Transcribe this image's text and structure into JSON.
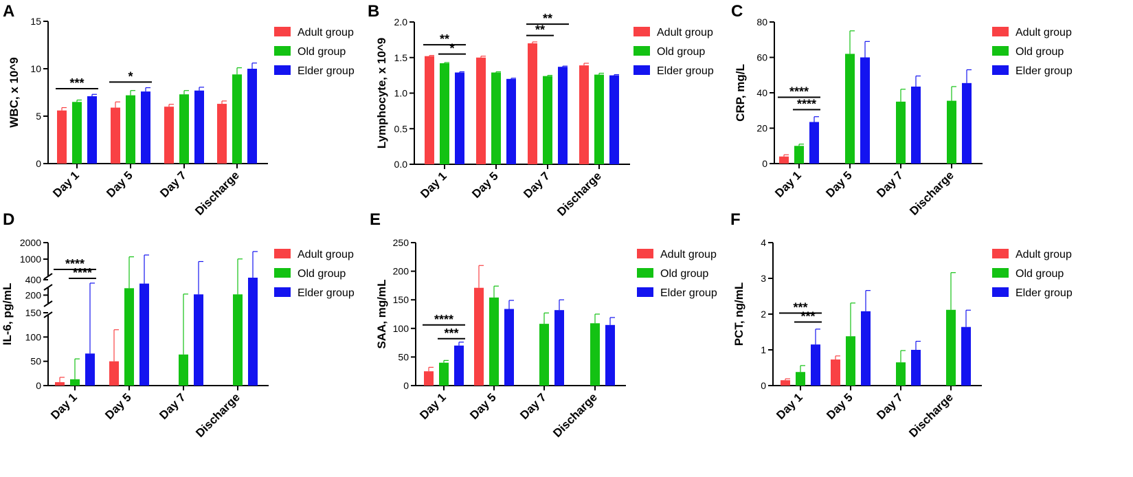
{
  "colors": {
    "adult": "#f94144",
    "old": "#13c213",
    "elder": "#1414f0"
  },
  "legend": [
    "Adult group",
    "Old group",
    "Elder group"
  ],
  "chart_data": [
    {
      "id": "A",
      "panel_label": "A",
      "type": "bar",
      "ylabel": "WBC, x 10^9",
      "categories": [
        "Day 1",
        "Day 5",
        "Day 7",
        "Discharge"
      ],
      "ylim": [
        0,
        15
      ],
      "yticks": [
        0,
        5,
        10,
        15
      ],
      "ytick_labels": [
        "0",
        "5",
        "10",
        "15"
      ],
      "series": [
        {
          "name": "Adult group",
          "values": [
            5.6,
            5.9,
            6.0,
            6.3
          ],
          "errors": [
            0.3,
            0.6,
            0.25,
            0.3
          ]
        },
        {
          "name": "Old group",
          "values": [
            6.5,
            7.2,
            7.3,
            9.4
          ],
          "errors": [
            0.2,
            0.5,
            0.4,
            0.7
          ]
        },
        {
          "name": "Elder group",
          "values": [
            7.1,
            7.6,
            7.7,
            10.0
          ],
          "errors": [
            0.2,
            0.4,
            0.35,
            0.6
          ]
        }
      ],
      "significance": [
        {
          "category": 0,
          "from": 0,
          "to": 2,
          "y": 7.9,
          "label": "***"
        },
        {
          "category": 1,
          "from": 0,
          "to": 2,
          "y": 8.6,
          "label": "*"
        }
      ]
    },
    {
      "id": "B",
      "panel_label": "B",
      "type": "bar",
      "ylabel": "Lymphocyte, x 10^9",
      "categories": [
        "Day 1",
        "Day 5",
        "Day 7",
        "Discharge"
      ],
      "ylim": [
        0,
        2.0
      ],
      "yticks": [
        0,
        0.5,
        1.0,
        1.5,
        2.0
      ],
      "ytick_labels": [
        "0.0",
        "0.5",
        "1.0",
        "1.5",
        "2.0"
      ],
      "series": [
        {
          "name": "Adult group",
          "values": [
            1.52,
            1.5,
            1.7,
            1.39
          ],
          "errors": [
            0.01,
            0.02,
            0.02,
            0.03
          ]
        },
        {
          "name": "Old group",
          "values": [
            1.42,
            1.29,
            1.24,
            1.26
          ],
          "errors": [
            0.01,
            0.01,
            0.01,
            0.02
          ]
        },
        {
          "name": "Elder group",
          "values": [
            1.29,
            1.2,
            1.37,
            1.25
          ],
          "errors": [
            0.01,
            0.01,
            0.01,
            0.01
          ]
        }
      ],
      "significance": [
        {
          "category": 0,
          "from": 0,
          "to": 2,
          "y": 1.68,
          "label": "**"
        },
        {
          "category": 0,
          "from": 1,
          "to": 2,
          "y": 1.55,
          "label": "*"
        },
        {
          "category": 2,
          "from": 0,
          "to": 2,
          "y": 1.97,
          "label": "**"
        },
        {
          "category": 2,
          "from": 0,
          "to": 1,
          "y": 1.81,
          "label": "**"
        }
      ]
    },
    {
      "id": "C",
      "panel_label": "C",
      "type": "bar",
      "ylabel": "CRP, mg/L",
      "categories": [
        "Day 1",
        "Day 5",
        "Day 7",
        "Discharge"
      ],
      "ylim": [
        0,
        80
      ],
      "yticks": [
        0,
        20,
        40,
        60,
        80
      ],
      "ytick_labels": [
        "0",
        "20",
        "40",
        "60",
        "80"
      ],
      "series": [
        {
          "name": "Adult group",
          "values": [
            4,
            null,
            null,
            null
          ],
          "errors": [
            1,
            0,
            0,
            0
          ]
        },
        {
          "name": "Old group",
          "values": [
            10,
            62,
            35,
            35.5
          ],
          "errors": [
            1,
            13,
            7,
            8
          ]
        },
        {
          "name": "Elder group",
          "values": [
            23.5,
            60,
            43.5,
            45.5
          ],
          "errors": [
            3,
            9,
            6,
            7.5
          ]
        }
      ],
      "significance": [
        {
          "category": 0,
          "from": 0,
          "to": 2,
          "y": 37.5,
          "label": "****"
        },
        {
          "category": 0,
          "from": 1,
          "to": 2,
          "y": 30.5,
          "label": "****"
        }
      ]
    },
    {
      "id": "D",
      "panel_label": "D",
      "type": "bar",
      "ylabel": "IL-6, pg/mL",
      "categories": [
        "Day 1",
        "Day 5",
        "Day 7",
        "Discharge"
      ],
      "broken_axis": true,
      "ylim": [
        0,
        2000
      ],
      "yticks": [
        0,
        50,
        100,
        150,
        200,
        400,
        1000,
        2000
      ],
      "ytick_labels": [
        "0",
        "50",
        "100",
        "150",
        "200",
        "400",
        "1000",
        "2000"
      ],
      "series": [
        {
          "name": "Adult group",
          "values": [
            7,
            50,
            null,
            null
          ],
          "errors": [
            10,
            65,
            0,
            0
          ]
        },
        {
          "name": "Old group",
          "values": [
            13,
            290,
            64,
            210
          ],
          "errors": [
            42,
            850,
            150,
            800
          ]
        },
        {
          "name": "Elder group",
          "values": [
            66,
            350,
            210,
            460
          ],
          "errors": [
            290,
            900,
            720,
            1000
          ]
        }
      ],
      "significance": [
        {
          "category": 0,
          "from": 0,
          "to": 2,
          "y": 700,
          "label": "****"
        },
        {
          "category": 0,
          "from": 1,
          "to": 2,
          "y": 440,
          "label": "****"
        }
      ]
    },
    {
      "id": "E",
      "panel_label": "E",
      "type": "bar",
      "ylabel": "SAA, mg/mL",
      "categories": [
        "Day 1",
        "Day 5",
        "Day 7",
        "Discharge"
      ],
      "ylim": [
        0,
        250
      ],
      "yticks": [
        0,
        50,
        100,
        150,
        200,
        250
      ],
      "ytick_labels": [
        "0",
        "50",
        "100",
        "150",
        "200",
        "250"
      ],
      "series": [
        {
          "name": "Adult group",
          "values": [
            25,
            171,
            null,
            null
          ],
          "errors": [
            7,
            39,
            0,
            0
          ]
        },
        {
          "name": "Old group",
          "values": [
            40,
            154,
            108,
            109
          ],
          "errors": [
            4,
            20,
            19,
            16
          ]
        },
        {
          "name": "Elder group",
          "values": [
            70,
            134,
            132,
            106
          ],
          "errors": [
            6,
            15,
            18,
            13
          ]
        }
      ],
      "significance": [
        {
          "category": 0,
          "from": 0,
          "to": 2,
          "y": 106,
          "label": "****"
        },
        {
          "category": 0,
          "from": 1,
          "to": 2,
          "y": 82,
          "label": "***"
        }
      ]
    },
    {
      "id": "F",
      "panel_label": "F",
      "type": "bar",
      "ylabel": "PCT, ng/mL",
      "categories": [
        "Day 1",
        "Day 5",
        "Day 7",
        "Discharge"
      ],
      "ylim": [
        0,
        4
      ],
      "yticks": [
        0,
        1,
        2,
        3,
        4
      ],
      "ytick_labels": [
        "0",
        "1",
        "2",
        "3",
        "4"
      ],
      "series": [
        {
          "name": "Adult group",
          "values": [
            0.15,
            0.73,
            null,
            null
          ],
          "errors": [
            0.04,
            0.1,
            0,
            0
          ]
        },
        {
          "name": "Old group",
          "values": [
            0.38,
            1.38,
            0.65,
            2.12
          ],
          "errors": [
            0.18,
            0.93,
            0.33,
            1.04
          ]
        },
        {
          "name": "Elder group",
          "values": [
            1.15,
            2.08,
            1.0,
            1.64
          ],
          "errors": [
            0.43,
            0.58,
            0.24,
            0.47
          ]
        }
      ],
      "significance": [
        {
          "category": 0,
          "from": 0,
          "to": 2,
          "y": 2.03,
          "label": "***"
        },
        {
          "category": 0,
          "from": 1,
          "to": 2,
          "y": 1.78,
          "label": "***"
        }
      ]
    }
  ]
}
